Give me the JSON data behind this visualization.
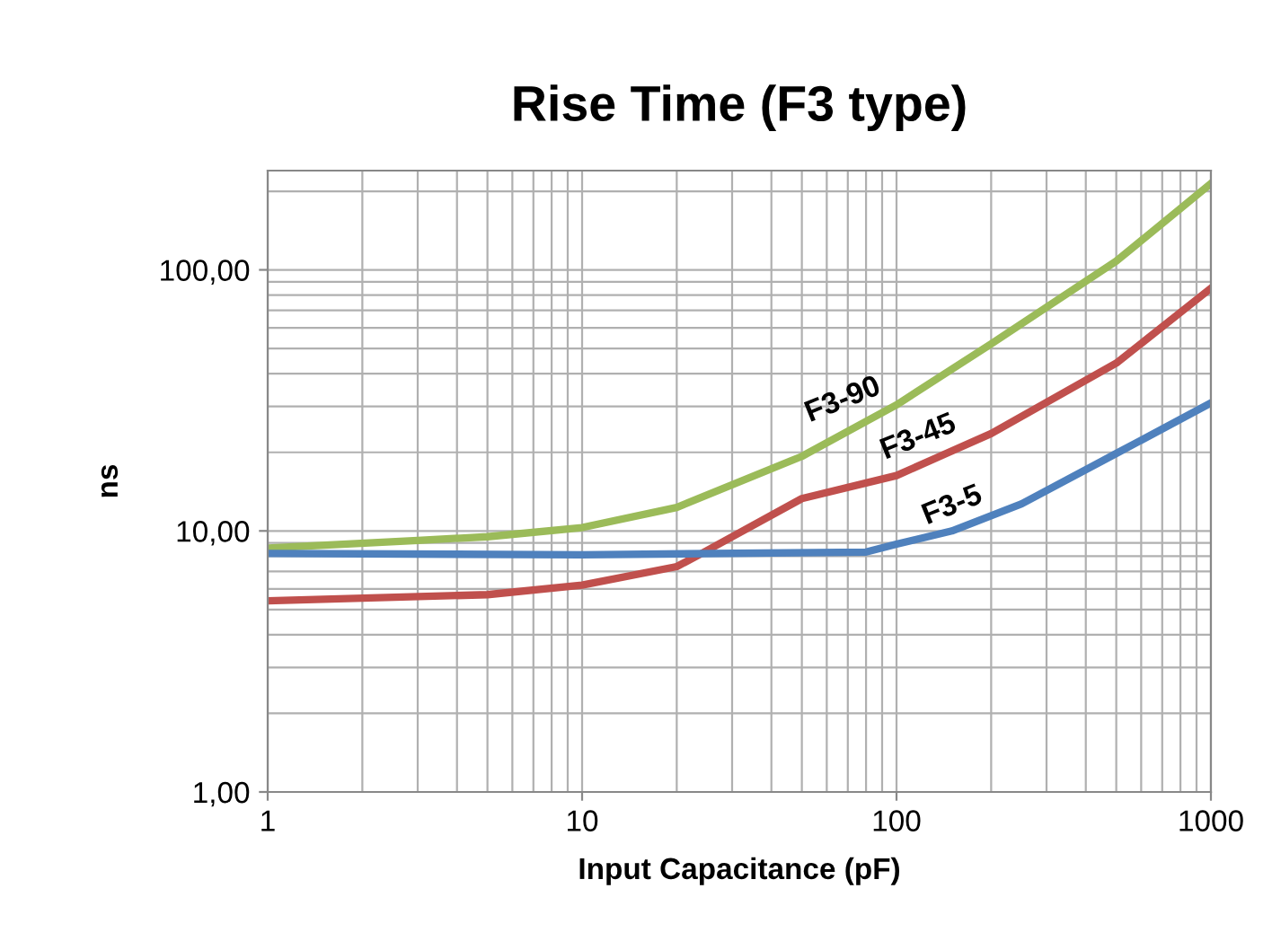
{
  "chart_data": {
    "type": "line",
    "title": "Rise Time (F3 type)",
    "xlabel": "Input Capacitance (pF)",
    "ylabel": "ns",
    "log": "xy",
    "grid": true,
    "legend": false,
    "xlim": [
      1,
      1000
    ],
    "xticks": [
      1,
      10,
      100,
      1000
    ],
    "ylim": [
      1,
      240
    ],
    "yticks": [
      {
        "value": 1,
        "label": "1,00"
      },
      {
        "value": 10,
        "label": "10,00"
      },
      {
        "value": 100,
        "label": "100,00"
      }
    ],
    "series": [
      {
        "color": "#9bbb59",
        "x": [
          1,
          3,
          5,
          10,
          20,
          50,
          100,
          200,
          500,
          1000
        ],
        "values": [
          8.6,
          9.2,
          9.5,
          10.3,
          12.3,
          19.3,
          30.4,
          52,
          108,
          214
        ]
      },
      {
        "color": "#c0504d",
        "x": [
          1,
          5,
          10,
          20,
          24,
          50,
          100,
          200,
          500,
          1000
        ],
        "values": [
          5.4,
          5.7,
          6.2,
          7.3,
          8.2,
          13.3,
          16.3,
          23.6,
          43.9,
          85
        ]
      },
      {
        "color": "#4f81bd",
        "x": [
          1,
          10,
          80,
          100,
          150,
          250,
          500,
          1000
        ],
        "values": [
          8.2,
          8.1,
          8.3,
          8.9,
          10.0,
          12.7,
          19.8,
          30.9
        ]
      }
    ],
    "annotations": [
      "F3-90",
      "F3-45",
      "F3-5"
    ]
  }
}
